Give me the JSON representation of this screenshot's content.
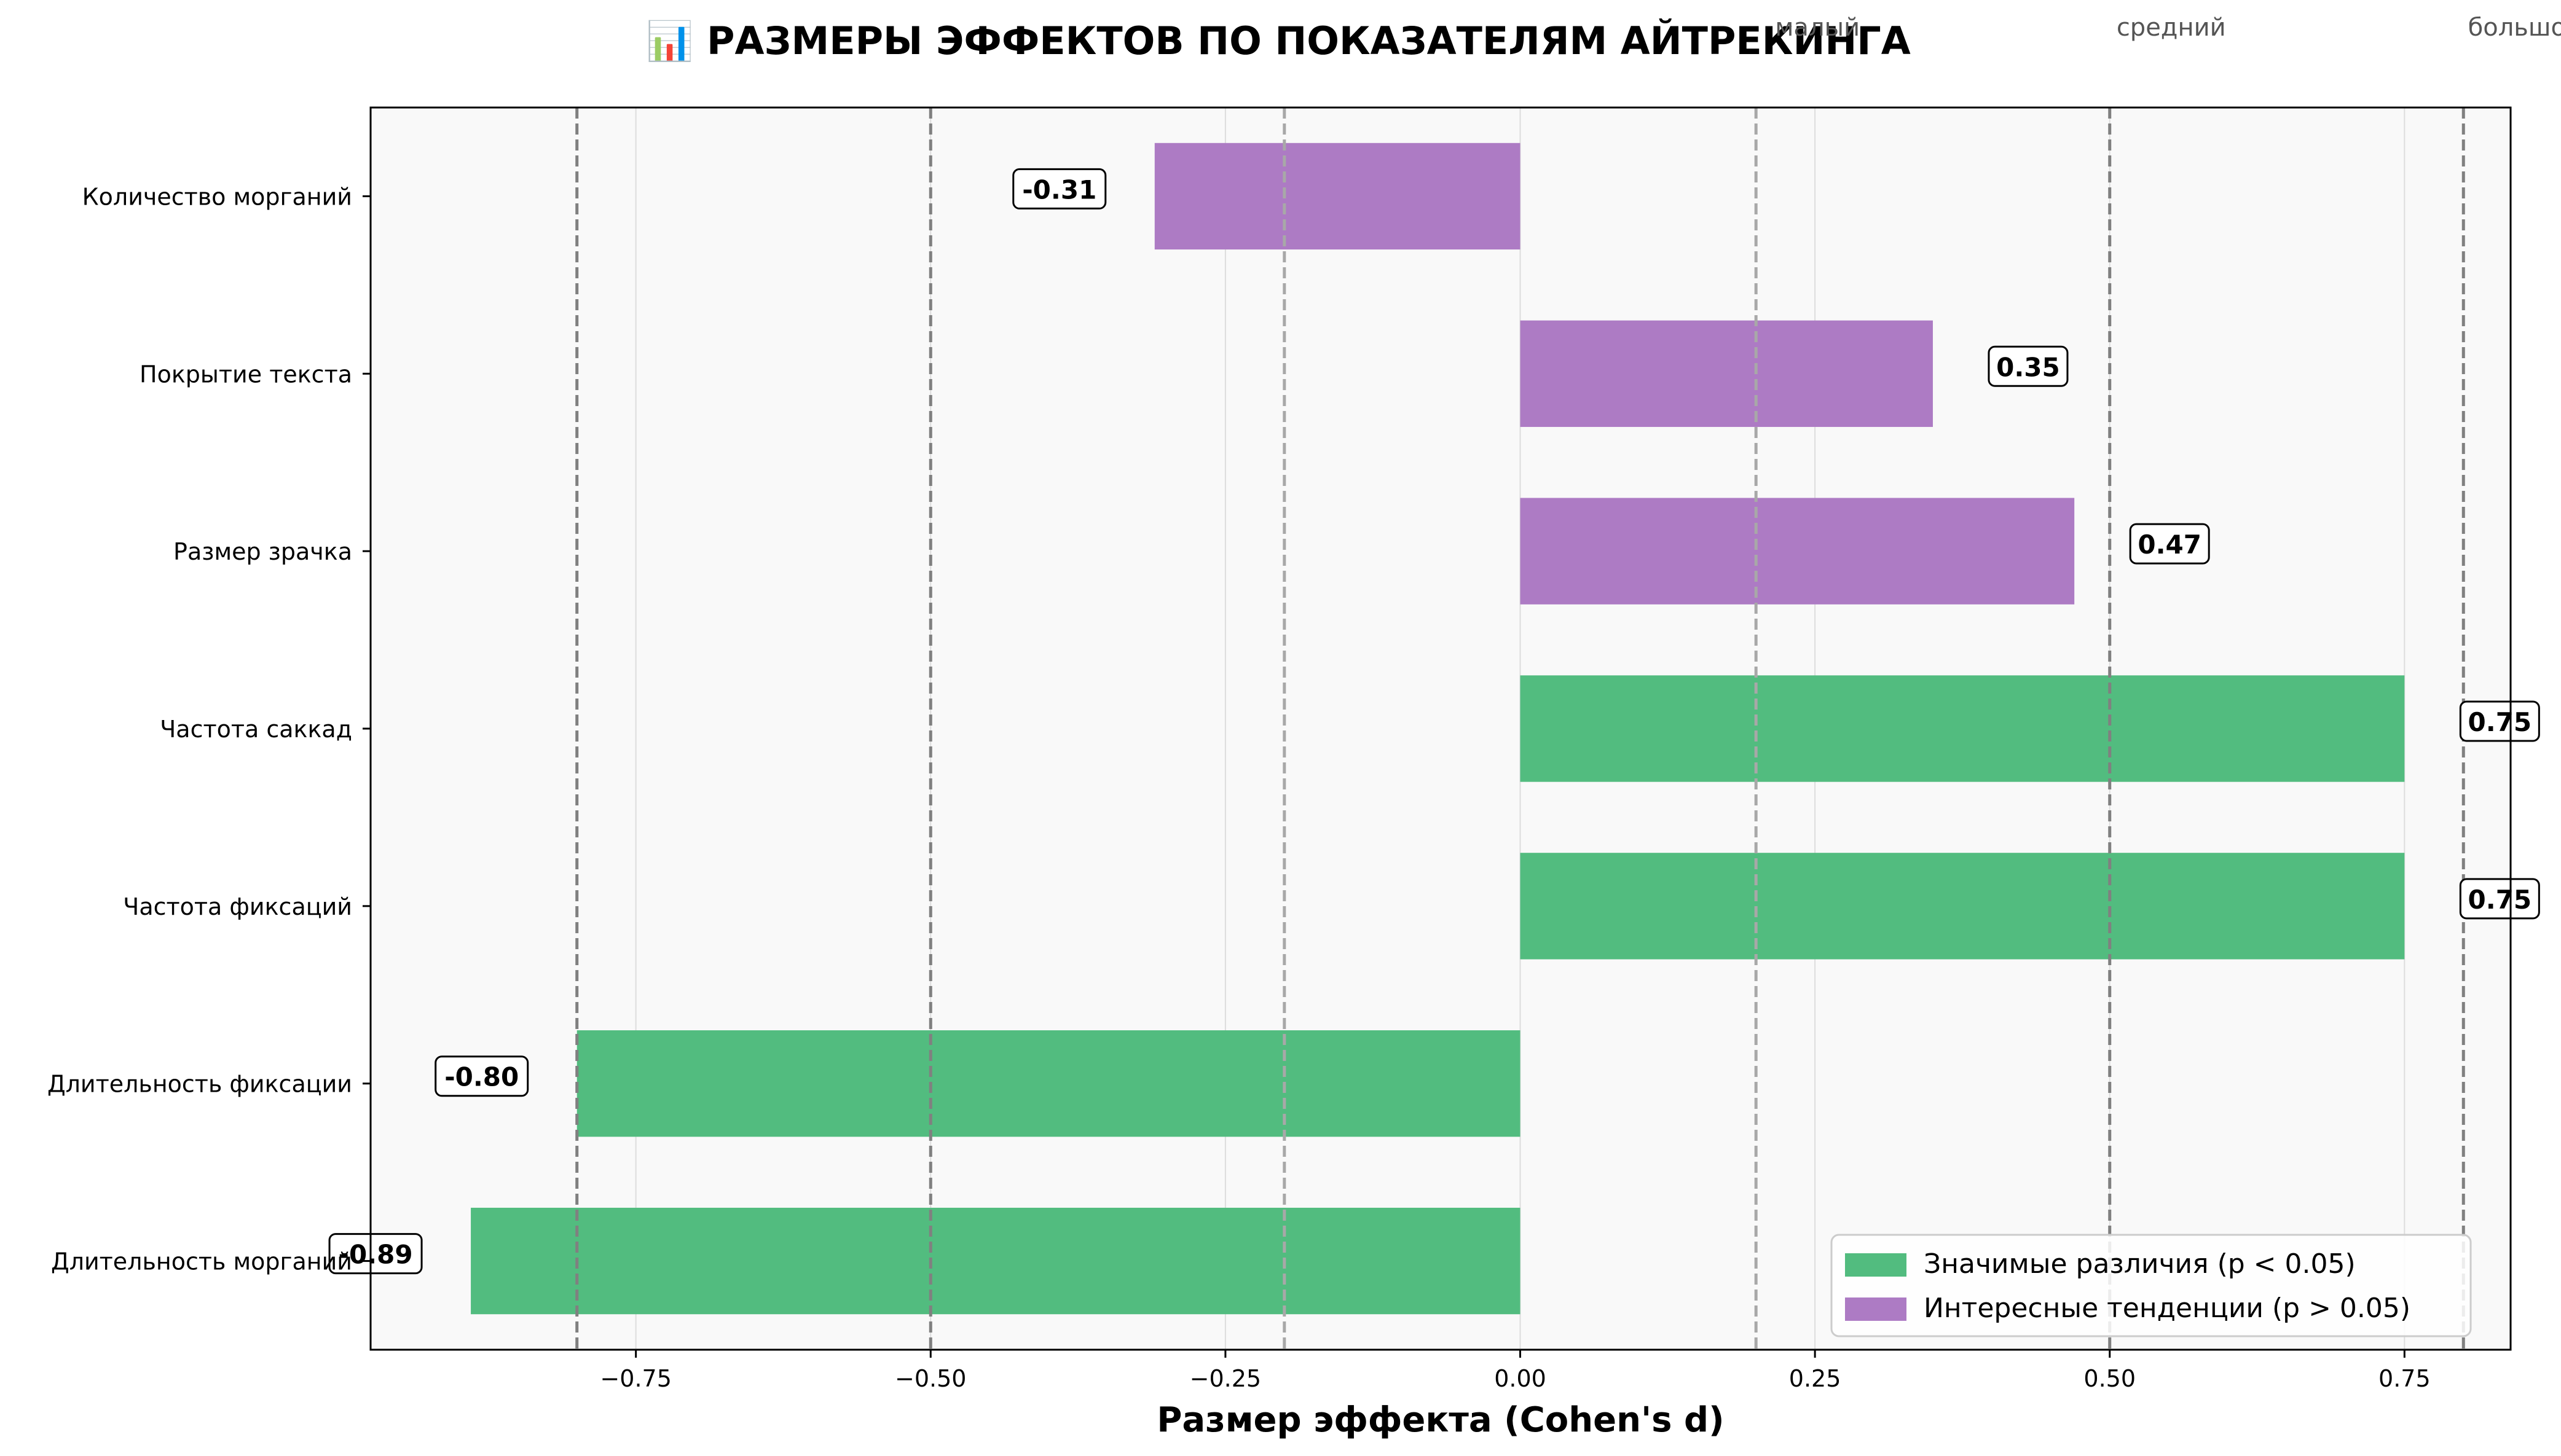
{
  "chart_data": {
    "type": "bar",
    "orientation": "horizontal",
    "title": "📊 РАЗМЕРЫ ЭФФЕКТОВ ПО ПОКАЗАТЕЛЯМ АЙТРЕКИНГА",
    "xlabel": "Размер эффекта (Cohen's d)",
    "ylabel": "",
    "xlim": [
      -0.975,
      0.84
    ],
    "x_ticks": [
      -0.75,
      -0.5,
      -0.25,
      0.0,
      0.25,
      0.5,
      0.75
    ],
    "x_tick_labels": [
      "−0.75",
      "−0.50",
      "−0.25",
      "0.00",
      "0.25",
      "0.50",
      "0.75"
    ],
    "grid": "vertical",
    "legend_position": "bottom-right",
    "categories": [
      "Количество морганий",
      "Покрытие текста",
      "Размер зрачка",
      "Частота саккад",
      "Частота фиксаций",
      "Длительность фиксации",
      "Длительность морганий"
    ],
    "values": [
      -0.31,
      0.35,
      0.47,
      0.75,
      0.75,
      -0.8,
      -0.89
    ],
    "value_labels": [
      "-0.31",
      "0.35",
      "0.47",
      "0.75",
      "0.75",
      "-0.80",
      "-0.89"
    ],
    "series_index": [
      1,
      1,
      1,
      0,
      0,
      0,
      0
    ],
    "series": [
      {
        "name": "Значимые различия (p < 0.05)",
        "color": "#52BC7F"
      },
      {
        "name": "Интересные тенденции (p > 0.05)",
        "color": "#AD7BC4"
      }
    ],
    "reference_lines": [
      {
        "x": -0.8,
        "style": "dark"
      },
      {
        "x": -0.5,
        "style": "dark"
      },
      {
        "x": -0.2,
        "style": "light"
      },
      {
        "x": 0.2,
        "style": "light"
      },
      {
        "x": 0.5,
        "style": "dark"
      },
      {
        "x": 0.8,
        "style": "dark"
      }
    ],
    "reference_labels": [
      {
        "x": 0.2,
        "text": "малый"
      },
      {
        "x": 0.5,
        "text": "средний"
      },
      {
        "x": 0.8,
        "text": "большой"
      }
    ],
    "colors": {
      "plot_background": "#F9F9F9",
      "grid": "#DDDDDD",
      "reference_dark": "#808080",
      "reference_light": "#A8A8A8"
    }
  }
}
